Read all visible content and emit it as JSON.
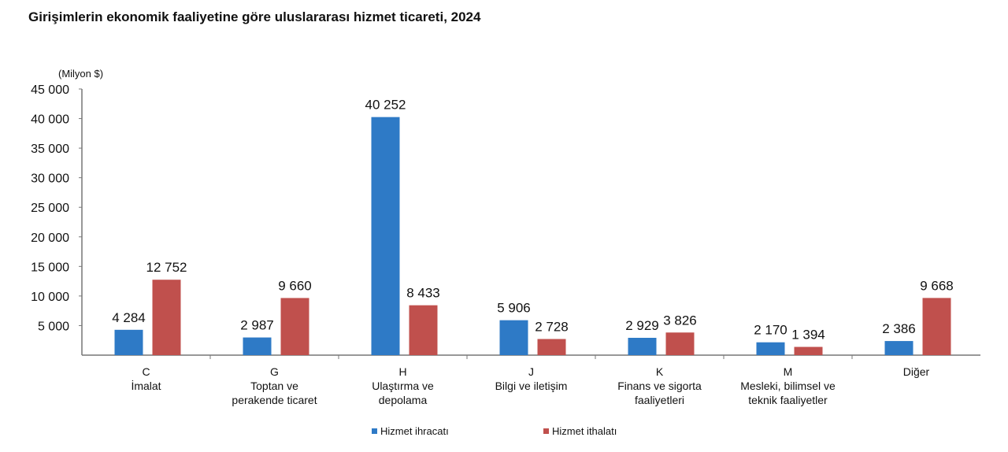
{
  "chart_data": {
    "type": "bar",
    "title": "Girişimlerin ekonomik faaliyetine göre uluslararası hizmet ticareti, 2024",
    "ylabel": "(Milyon $)",
    "xlabel": "",
    "ylim": [
      0,
      45000
    ],
    "yticks": [
      5000,
      10000,
      15000,
      20000,
      25000,
      30000,
      35000,
      40000,
      45000
    ],
    "ytick_labels": [
      "5 000",
      "10 000",
      "15 000",
      "20 000",
      "25 000",
      "30 000",
      "35 000",
      "40 000",
      "45 000"
    ],
    "categories": [
      [
        "C",
        "İmalat"
      ],
      [
        "G",
        "Toptan ve",
        "perakende ticaret"
      ],
      [
        "H",
        "Ulaştırma ve",
        "depolama"
      ],
      [
        "J",
        "Bilgi ve iletişim"
      ],
      [
        "K",
        "Finans ve sigorta",
        "faaliyetleri"
      ],
      [
        "M",
        "Mesleki, bilimsel ve",
        "teknik faaliyetler"
      ],
      [
        "Diğer"
      ]
    ],
    "series": [
      {
        "name": "Hizmet ihracatı",
        "color": "#2e7ac6",
        "values": [
          4284,
          2987,
          40252,
          5906,
          2929,
          2170,
          2386
        ],
        "labels": [
          "4 284",
          "2 987",
          "40 252",
          "5 906",
          "2 929",
          "2 170",
          "2 386"
        ]
      },
      {
        "name": "Hizmet ithalatı",
        "color": "#c0504d",
        "values": [
          12752,
          9660,
          8433,
          2728,
          3826,
          1394,
          9668
        ],
        "labels": [
          "12 752",
          "9 660",
          "8 433",
          "2 728",
          "3 826",
          "1 394",
          "9 668"
        ]
      }
    ],
    "legend": "bottom",
    "grid": false
  }
}
